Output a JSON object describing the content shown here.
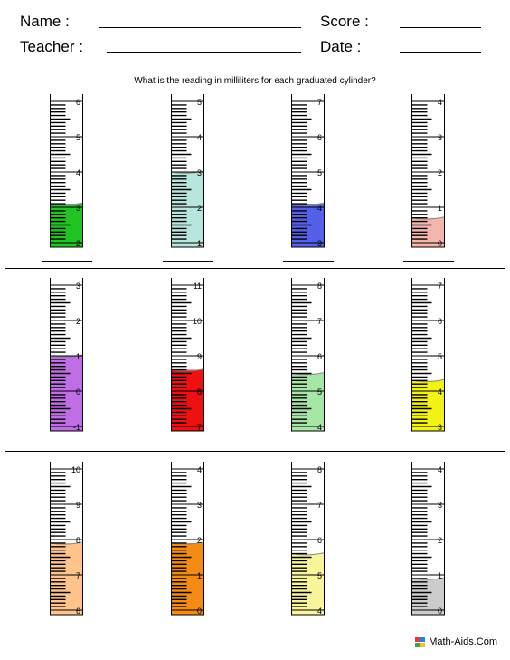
{
  "header": {
    "name_label": "Name :",
    "teacher_label": "Teacher :",
    "score_label": "Score :",
    "date_label": "Date :"
  },
  "question": "What is the reading in milliliters for each graduated cylinder?",
  "liquid_note": "each cylinder shows a colored liquid level; reading is left blank for the student",
  "cylinders": [
    {
      "labels": [
        "6",
        "5",
        "4",
        "3",
        "2"
      ],
      "color": "#22c322",
      "level": 3.1
    },
    {
      "labels": [
        "5",
        "4",
        "3",
        "2",
        "1"
      ],
      "color": "#b7e6dc",
      "level": 3.0
    },
    {
      "labels": [
        "7",
        "6",
        "5",
        "4",
        "3"
      ],
      "color": "#5460e8",
      "level": 4.1
    },
    {
      "labels": [
        "4",
        "3",
        "2",
        "1",
        "0"
      ],
      "color": "#f4b6ac",
      "level": 0.7
    },
    {
      "labels": [
        "3",
        "2",
        "1",
        "0",
        "-1"
      ],
      "color": "#c06ee6",
      "level": 1.0
    },
    {
      "labels": [
        "11",
        "10",
        "9",
        "8",
        "7"
      ],
      "color": "#ee1111",
      "level": 8.6
    },
    {
      "labels": [
        "8",
        "7",
        "6",
        "5",
        "4"
      ],
      "color": "#a6e6a6",
      "level": 5.5
    },
    {
      "labels": [
        "7",
        "6",
        "5",
        "4",
        "3"
      ],
      "color": "#f2f215",
      "level": 4.3
    },
    {
      "labels": [
        "10",
        "9",
        "8",
        "7",
        "6"
      ],
      "color": "#ffc48c",
      "level": 7.9
    },
    {
      "labels": [
        "4",
        "3",
        "2",
        "1",
        "0"
      ],
      "color": "#f58b14",
      "level": 1.9
    },
    {
      "labels": [
        "8",
        "7",
        "6",
        "5",
        "4"
      ],
      "color": "#f8f59a",
      "level": 5.6
    },
    {
      "labels": [
        "4",
        "3",
        "2",
        "1",
        "0"
      ],
      "color": "#cccccc",
      "level": 0.9
    }
  ],
  "footer": {
    "site": "Math-Aids.Com",
    "logo_colors": [
      "#e53935",
      "#1e88e5",
      "#43a047",
      "#fbc02d"
    ]
  }
}
